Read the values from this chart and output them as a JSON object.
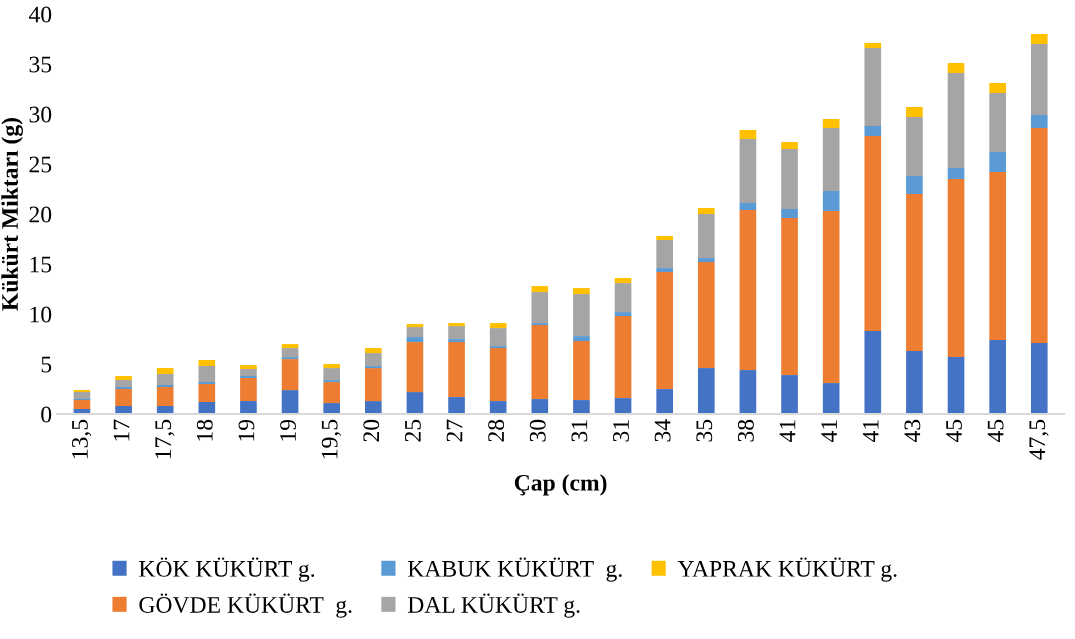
{
  "chart_data": {
    "type": "bar",
    "stacked": true,
    "xlabel": "Çap (cm)",
    "ylabel": "Kükürt Miktarı (g)",
    "categories": [
      "13,5",
      "17",
      "17,5",
      "18",
      "19",
      "19",
      "19,5",
      "20",
      "25",
      "27",
      "28",
      "30",
      "31",
      "31",
      "34",
      "35",
      "38",
      "41",
      "41",
      "41",
      "43",
      "45",
      "45",
      "47,5"
    ],
    "ylim": [
      0,
      40
    ],
    "yticks": [
      0,
      5,
      10,
      15,
      20,
      25,
      30,
      35,
      40
    ],
    "grid": false,
    "legend": "bottom",
    "series": [
      {
        "name": "KÖK KÜKÜRT g.",
        "color": "#4472c4",
        "values": [
          0.5,
          0.8,
          0.8,
          1.2,
          1.3,
          2.4,
          1.1,
          1.3,
          2.2,
          1.7,
          1.3,
          1.5,
          1.4,
          1.6,
          2.5,
          4.6,
          4.4,
          3.9,
          3.1,
          8.3,
          6.3,
          5.7,
          7.4,
          7.1
        ]
      },
      {
        "name": "GÖVDE KÜKÜRT  g.",
        "color": "#ed7d31",
        "values": [
          0.9,
          1.7,
          1.9,
          1.8,
          2.3,
          3.1,
          2.1,
          3.3,
          5.0,
          5.5,
          5.3,
          7.4,
          5.9,
          8.2,
          11.7,
          10.6,
          16.0,
          15.7,
          17.2,
          19.5,
          15.7,
          17.8,
          16.8,
          21.5
        ]
      },
      {
        "name": "KABUK KÜKÜRT  g.",
        "color": "#5b9bd5",
        "values": [
          0.1,
          0.2,
          0.2,
          0.2,
          0.2,
          0.2,
          0.2,
          0.2,
          0.5,
          0.3,
          0.2,
          0.2,
          0.5,
          0.4,
          0.4,
          0.4,
          0.7,
          0.9,
          2.0,
          1.0,
          1.8,
          1.1,
          2.0,
          1.3
        ]
      },
      {
        "name": "DAL KÜKÜRT g.",
        "color": "#a5a5a5",
        "values": [
          0.7,
          0.7,
          1.1,
          1.6,
          0.7,
          0.9,
          1.2,
          1.3,
          1.0,
          1.3,
          1.8,
          3.1,
          4.2,
          2.9,
          2.8,
          4.4,
          6.4,
          6.0,
          6.3,
          7.8,
          5.9,
          9.5,
          5.9,
          7.1
        ]
      },
      {
        "name": "YAPRAK KÜKÜRT g.",
        "color": "#ffc000",
        "values": [
          0.2,
          0.4,
          0.6,
          0.6,
          0.4,
          0.4,
          0.4,
          0.5,
          0.3,
          0.3,
          0.5,
          0.6,
          0.6,
          0.5,
          0.4,
          0.6,
          0.9,
          0.7,
          0.9,
          0.5,
          1.0,
          1.0,
          1.0,
          1.0
        ]
      }
    ]
  }
}
